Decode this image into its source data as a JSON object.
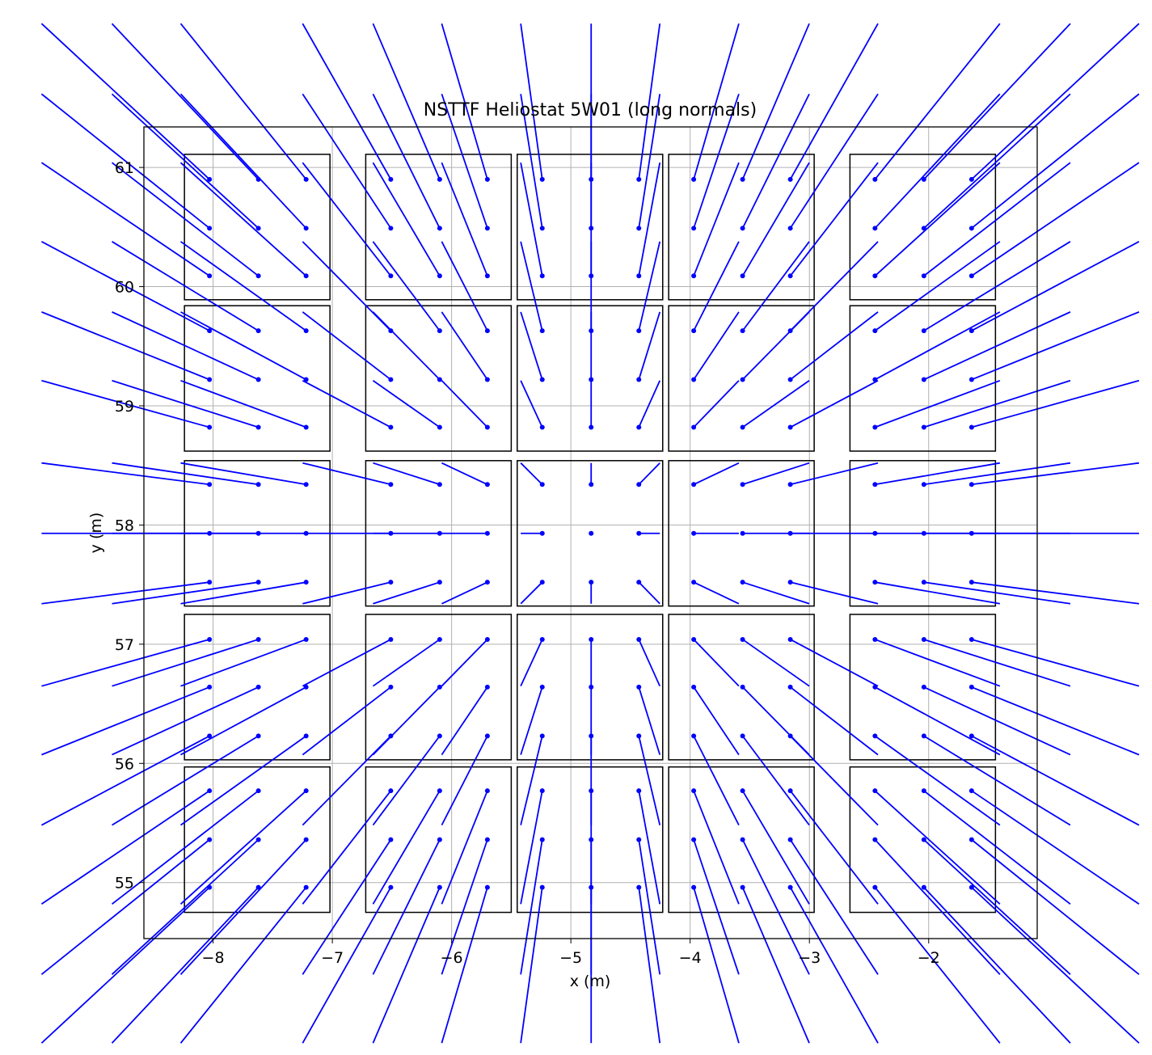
{
  "chart_data": {
    "type": "scatter",
    "title": "NSTTF Heliostat 5W01 (long normals)",
    "xlabel": "x (m)",
    "ylabel": "y (m)",
    "xlim": [
      -8.58,
      -1.09
    ],
    "ylim": [
      54.53,
      61.34
    ],
    "xticks": [
      -8,
      -7,
      -6,
      -5,
      -4,
      -3,
      -2
    ],
    "xtick_labels": [
      "−8",
      "−7",
      "−6",
      "−5",
      "−4",
      "−3",
      "−2"
    ],
    "yticks": [
      55,
      56,
      57,
      58,
      59,
      60,
      61
    ],
    "ytick_labels": [
      "55",
      "56",
      "57",
      "58",
      "59",
      "60",
      "61"
    ],
    "grid": true,
    "legend": "none",
    "colors": {
      "normals": "#0000ff",
      "facets": "#000000",
      "grid": "#b0b0b0"
    },
    "facet_columns": [
      {
        "x_min": -8.24,
        "x_max": -7.02,
        "points_x": [
          -8.03,
          -7.62,
          -7.22
        ]
      },
      {
        "x_min": -6.72,
        "x_max": -5.5,
        "points_x": [
          -6.51,
          -6.1,
          -5.7
        ]
      },
      {
        "x_min": -5.45,
        "x_max": -4.23,
        "points_x": [
          -5.24,
          -4.83,
          -4.43
        ]
      },
      {
        "x_min": -4.18,
        "x_max": -2.96,
        "points_x": [
          -3.97,
          -3.56,
          -3.16
        ]
      },
      {
        "x_min": -2.66,
        "x_max": -1.44,
        "points_x": [
          -2.45,
          -2.04,
          -1.64
        ]
      }
    ],
    "facet_rows": [
      {
        "y_min": 59.89,
        "y_max": 61.11,
        "points_y": [
          60.9,
          60.49,
          60.09
        ]
      },
      {
        "y_min": 58.62,
        "y_max": 59.84,
        "points_y": [
          59.63,
          59.22,
          58.82
        ]
      },
      {
        "y_min": 57.32,
        "y_max": 58.54,
        "points_y": [
          58.34,
          57.93,
          57.52
        ]
      },
      {
        "y_min": 56.03,
        "y_max": 57.25,
        "points_y": [
          57.04,
          56.64,
          56.23
        ]
      },
      {
        "y_min": 54.75,
        "y_max": 55.97,
        "points_y": [
          55.77,
          55.36,
          54.96
        ]
      }
    ],
    "normal_focus": {
      "x": -4.83,
      "y": 57.93
    },
    "normal_scale": 0.44
  }
}
